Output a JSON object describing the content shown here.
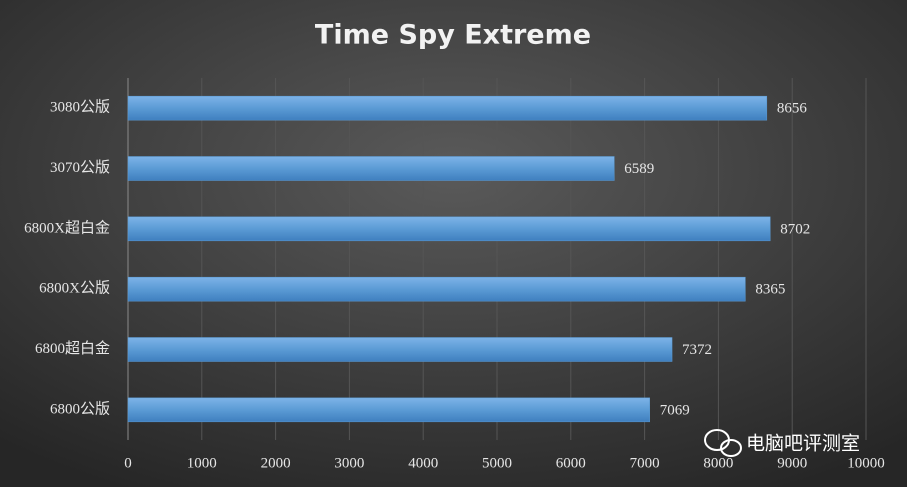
{
  "chart_data": {
    "type": "bar",
    "orientation": "horizontal",
    "title": "Time Spy Extreme",
    "categories": [
      "3080公版",
      "3070公版",
      "6800X超白金",
      "6800X公版",
      "6800超白金",
      "6800公版"
    ],
    "values": [
      8656,
      6589,
      8702,
      8365,
      7372,
      7069
    ],
    "color": "#5b9bd5",
    "xlim": [
      0,
      10000
    ],
    "xticks": [
      0,
      1000,
      2000,
      3000,
      4000,
      5000,
      6000,
      7000,
      8000,
      9000,
      10000
    ],
    "grid": true,
    "data_labels": true
  },
  "watermark": "电脑吧评测室"
}
